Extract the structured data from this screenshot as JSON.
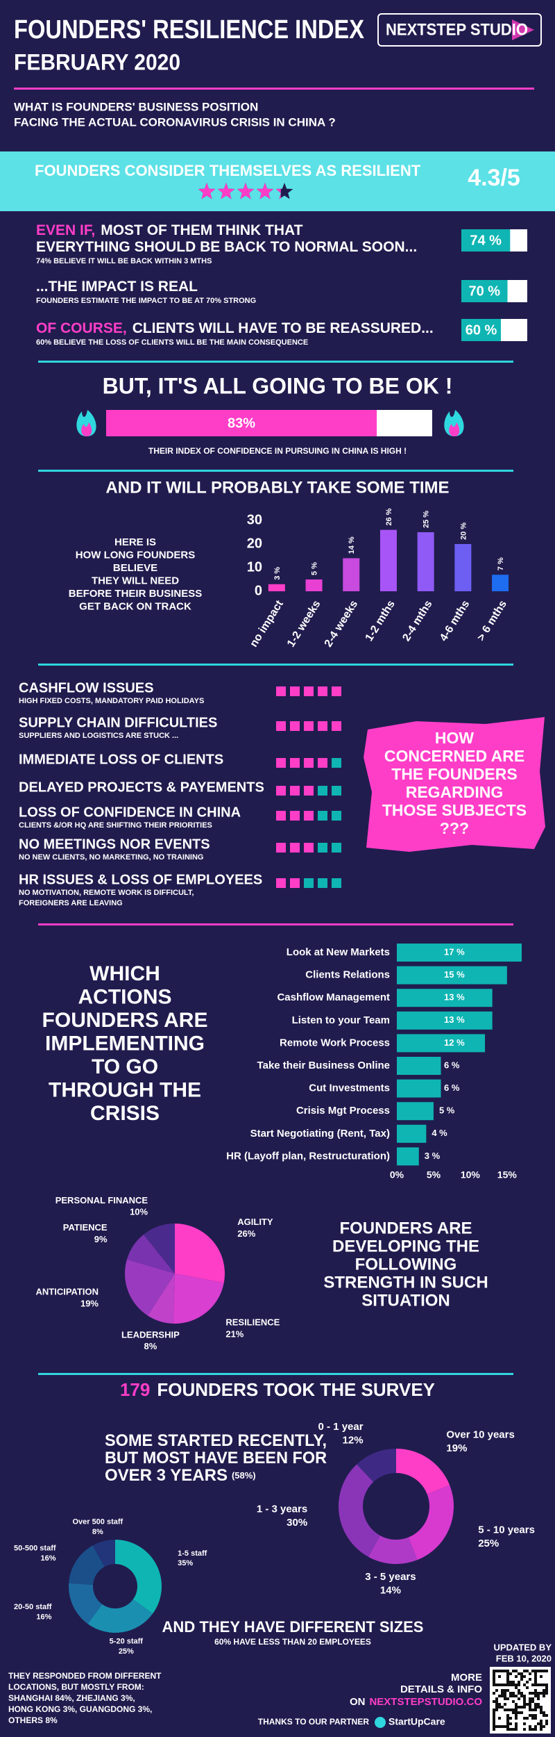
{
  "header": {
    "title": "FOUNDERS' RESILIENCE INDEX",
    "date": "FEBRUARY 2020",
    "logo": "NEXTSTEP STUDIO"
  },
  "question": [
    "WHAT IS FOUNDERS' BUSINESS POSITION",
    "FACING THE ACTUAL CORONAVIRUS CRISIS IN CHINA ?"
  ],
  "resilience": {
    "text": "FOUNDERS CONSIDER THEMSELVES AS RESILIENT",
    "score": 4.3,
    "max": 5,
    "score_label": "4.3/5"
  },
  "findings": [
    {
      "lead": "EVEN IF,",
      "lines": [
        "MOST OF THEM THINK THAT",
        "EVERYTHING SHOULD BE BACK TO NORMAL SOON..."
      ],
      "note": "74% BELIEVE IT WILL BE BACK WITHIN 3 MTHS",
      "value": 74,
      "value_label": "74 %"
    },
    {
      "lines": [
        "...THE IMPACT IS REAL"
      ],
      "note": "FOUNDERS ESTIMATE THE IMPACT TO BE AT 70% STRONG",
      "value": 70,
      "value_label": "70 %"
    },
    {
      "lead": "OF COURSE,",
      "lines": [
        "CLIENTS WILL HAVE TO BE REASSURED..."
      ],
      "note": "60% BELIEVE THE LOSS OF CLIENTS WILL BE THE MAIN CONSEQUENCE",
      "value": 60,
      "value_label": "60 %"
    }
  ],
  "confidence": {
    "title": "BUT, IT'S ALL GOING TO BE OK !",
    "value": 83,
    "value_label": "83%",
    "caption": "THEIR INDEX OF CONFIDENCE IN PURSUING IN CHINA IS HIGH !"
  },
  "timing": {
    "title": "AND IT WILL PROBABLY TAKE SOME TIME",
    "description": [
      "HERE IS",
      "HOW LONG FOUNDERS",
      "BELIEVE",
      "THEY WILL NEED",
      "BEFORE THEIR BUSINESS",
      "GET BACK ON TRACK"
    ],
    "chart": {
      "type": "bar",
      "categories": [
        "no impact",
        "1-2 weeks",
        "2-4 weeks",
        "1-2 mths",
        "2-4 mths",
        "4-6 mths",
        "> 6 mths"
      ],
      "values": [
        3,
        5,
        14,
        26,
        25,
        20,
        7
      ],
      "value_labels": [
        "3 %",
        "5 %",
        "14 %",
        "26 %",
        "25 %",
        "20 %",
        "7 %"
      ],
      "colors": [
        "#ff3ec8",
        "#e940d4",
        "#c84ade",
        "#a855f7",
        "#8f5af5",
        "#6d5ff2",
        "#1e6cf0"
      ],
      "ylim": [
        0,
        30
      ],
      "yticks": [
        0,
        10,
        20,
        30
      ],
      "grid": false
    }
  },
  "concerns": {
    "scale": 5,
    "items": [
      {
        "title": "CASHFLOW ISSUES",
        "notes": [
          "HIGH FIXED COSTS, MANDATORY PAID HOLIDAYS"
        ],
        "score": 5
      },
      {
        "title": "SUPPLY CHAIN DIFFICULTIES",
        "notes": [
          "SUPPLIERS AND LOGISTICS ARE STUCK ..."
        ],
        "score": 5
      },
      {
        "title": "IMMEDIATE LOSS OF CLIENTS",
        "score": 4
      },
      {
        "title": "DELAYED PROJECTS & PAYEMENTS",
        "score": 3
      },
      {
        "title": "LOSS OF CONFIDENCE IN CHINA",
        "notes": [
          "CLIENTS &/OR HQ ARE SHIFTING THEIR PRIORITIES"
        ],
        "score": 3
      },
      {
        "title": "NO MEETINGS NOR EVENTS",
        "notes": [
          "NO NEW CLIENTS, NO MARKETING, NO TRAINING"
        ],
        "score": 3
      },
      {
        "title": "HR ISSUES & LOSS OF EMPLOYEES",
        "notes": [
          "NO MOTIVATION, REMOTE WORK IS DIFFICULT,",
          "FOREIGNERS ARE LEAVING"
        ],
        "score": 2
      }
    ],
    "callout": [
      "HOW",
      "CONCERNED ARE",
      "THE FOUNDERS",
      "REGARDING",
      "THOSE SUBJECTS",
      "???"
    ]
  },
  "actions": {
    "title": [
      "WHICH",
      "ACTIONS",
      "FOUNDERS ARE",
      "IMPLEMENTING",
      "TO GO",
      "THROUGH THE",
      "CRISIS"
    ],
    "chart": {
      "type": "bar",
      "orientation": "horizontal",
      "categories": [
        "Look at New Markets",
        "Clients Relations",
        "Cashflow Management",
        "Listen to your Team",
        "Remote Work Process",
        "Take their Business Online",
        "Cut Investments",
        "Crisis Mgt Process",
        "Start Negotiating (Rent, Tax)",
        "HR (Layoff plan, Restructuration)"
      ],
      "values": [
        17,
        15,
        13,
        13,
        12,
        6,
        6,
        5,
        4,
        3
      ],
      "value_labels": [
        "17 %",
        "15 %",
        "13 %",
        "13 %",
        "12 %",
        "6 %",
        "6 %",
        "5 %",
        "4 %",
        "3 %"
      ],
      "color": "#0fb5b3",
      "xlim": [
        0,
        17
      ],
      "xticks": [
        {
          "value": 0,
          "label": "0%"
        },
        {
          "value": 5,
          "label": "5%"
        },
        {
          "value": 10,
          "label": "10%"
        },
        {
          "value": 15,
          "label": "15%"
        }
      ]
    }
  },
  "strengths": {
    "text": [
      "FOUNDERS ARE",
      "DEVELOPING THE",
      "FOLLOWING",
      "STRENGTH IN SUCH",
      "SITUATION"
    ],
    "chart": {
      "type": "pie",
      "categories": [
        "AGILITY",
        "RESILIENCE",
        "LEADERSHIP",
        "ANTICIPATION",
        "PATIENCE",
        "PERSONAL FINANCE"
      ],
      "values": [
        26,
        21,
        8,
        19,
        9,
        10
      ],
      "value_labels": [
        "26%",
        "21%",
        "8%",
        "19%",
        "9%",
        "10%"
      ],
      "colors": [
        "#ff3ec8",
        "#d93fd0",
        "#bf42c9",
        "#9a3bbf",
        "#7a33ae",
        "#4b2a8e"
      ]
    }
  },
  "survey": {
    "count": 179,
    "title": "FOUNDERS TOOK THE SURVEY",
    "experience": {
      "text": [
        "SOME STARTED RECENTLY,",
        "BUT MOST HAVE BEEN FOR",
        "OVER 3 YEARS"
      ],
      "note": "(58%)",
      "chart": {
        "type": "pie",
        "donut": true,
        "categories": [
          "Over 10 years",
          "5 - 10 years",
          "3 - 5 years",
          "1 - 3 years",
          "0 - 1 year"
        ],
        "values": [
          19,
          25,
          14,
          30,
          12
        ],
        "value_labels": [
          "19%",
          "25%",
          "14%",
          "30%",
          "12%"
        ],
        "colors": [
          "#ff3ec8",
          "#d83ad0",
          "#b03ac8",
          "#8a35b8",
          "#3e2a85"
        ]
      }
    },
    "size": {
      "title": "AND THEY HAVE DIFFERENT SIZES",
      "note": "60% HAVE LESS THAN 20 EMPLOYEES",
      "chart": {
        "type": "pie",
        "donut": true,
        "categories": [
          "1-5 staff",
          "5-20 staff",
          "20-50 staff",
          "50-500 staff",
          "Over 500 staff"
        ],
        "values": [
          35,
          25,
          16,
          16,
          8
        ],
        "value_labels": [
          "35%",
          "25%",
          "16%",
          "16%",
          "8%"
        ],
        "colors": [
          "#0fb5b3",
          "#1a8fb0",
          "#1d6aa0",
          "#1a4f8a",
          "#22357a"
        ]
      }
    }
  },
  "footer": {
    "locations": [
      "THEY RESPONDED FROM DIFFERENT",
      "LOCATIONS, BUT MOSTLY FROM:",
      "SHANGHAI 84%, ZHEJIANG 3%,",
      "HONG KONG 3%, GUANGDONG 3%,",
      "OTHERS 8%"
    ],
    "updated": [
      "UPDATED BY",
      "FEB 10, 2020"
    ],
    "more": [
      "MORE",
      "DETAILS & INFO"
    ],
    "website_prefix": "ON",
    "website": "NEXTSTEPSTUDIO.CO",
    "thanks": "THANKS TO OUR PARTNER",
    "partner": "StartUpCare"
  }
}
